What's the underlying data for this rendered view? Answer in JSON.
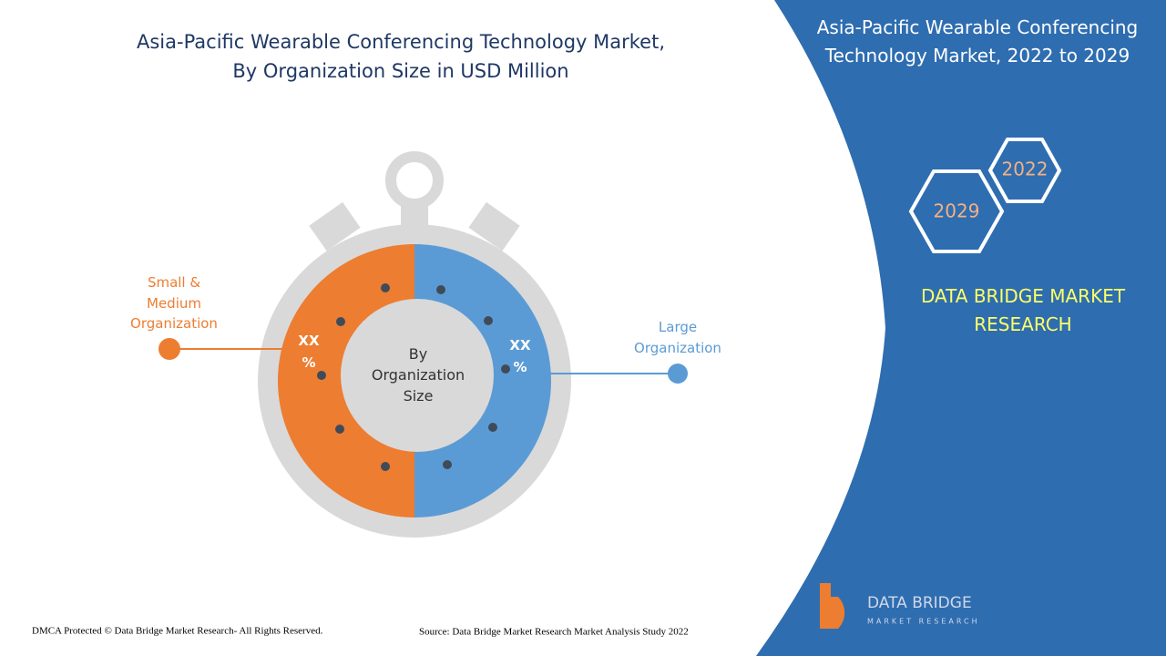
{
  "header": {
    "title_lines": [
      "Asia-Pacific Wearable Conferencing Technology Market,",
      "By Organization Size in USD Million"
    ]
  },
  "diagram": {
    "center_lines": [
      "By",
      "Organization",
      "Size"
    ],
    "segments": [
      {
        "label_lines": [
          "Small &",
          "Medium",
          "Organization"
        ],
        "value_lines": [
          "XX",
          "%"
        ]
      },
      {
        "label_lines": [
          "Large",
          "Organization"
        ],
        "value_lines": [
          "XX",
          "%"
        ]
      }
    ]
  },
  "panel": {
    "title_lines": [
      "Asia-Pacific Wearable Conferencing",
      "Technology Market, 2022 to 2029"
    ],
    "years": [
      "2022",
      "2029"
    ],
    "brand_lines": [
      "DATA BRIDGE MARKET",
      "RESEARCH"
    ],
    "logo_lines": [
      "DATA BRIDGE",
      "MARKET RESEARCH"
    ]
  },
  "footer": {
    "copyright": "DMCA Protected © Data Bridge Market Research- All Rights Reserved.",
    "source": "Source: Data Bridge Market Research Market Analysis Study 2022"
  }
}
